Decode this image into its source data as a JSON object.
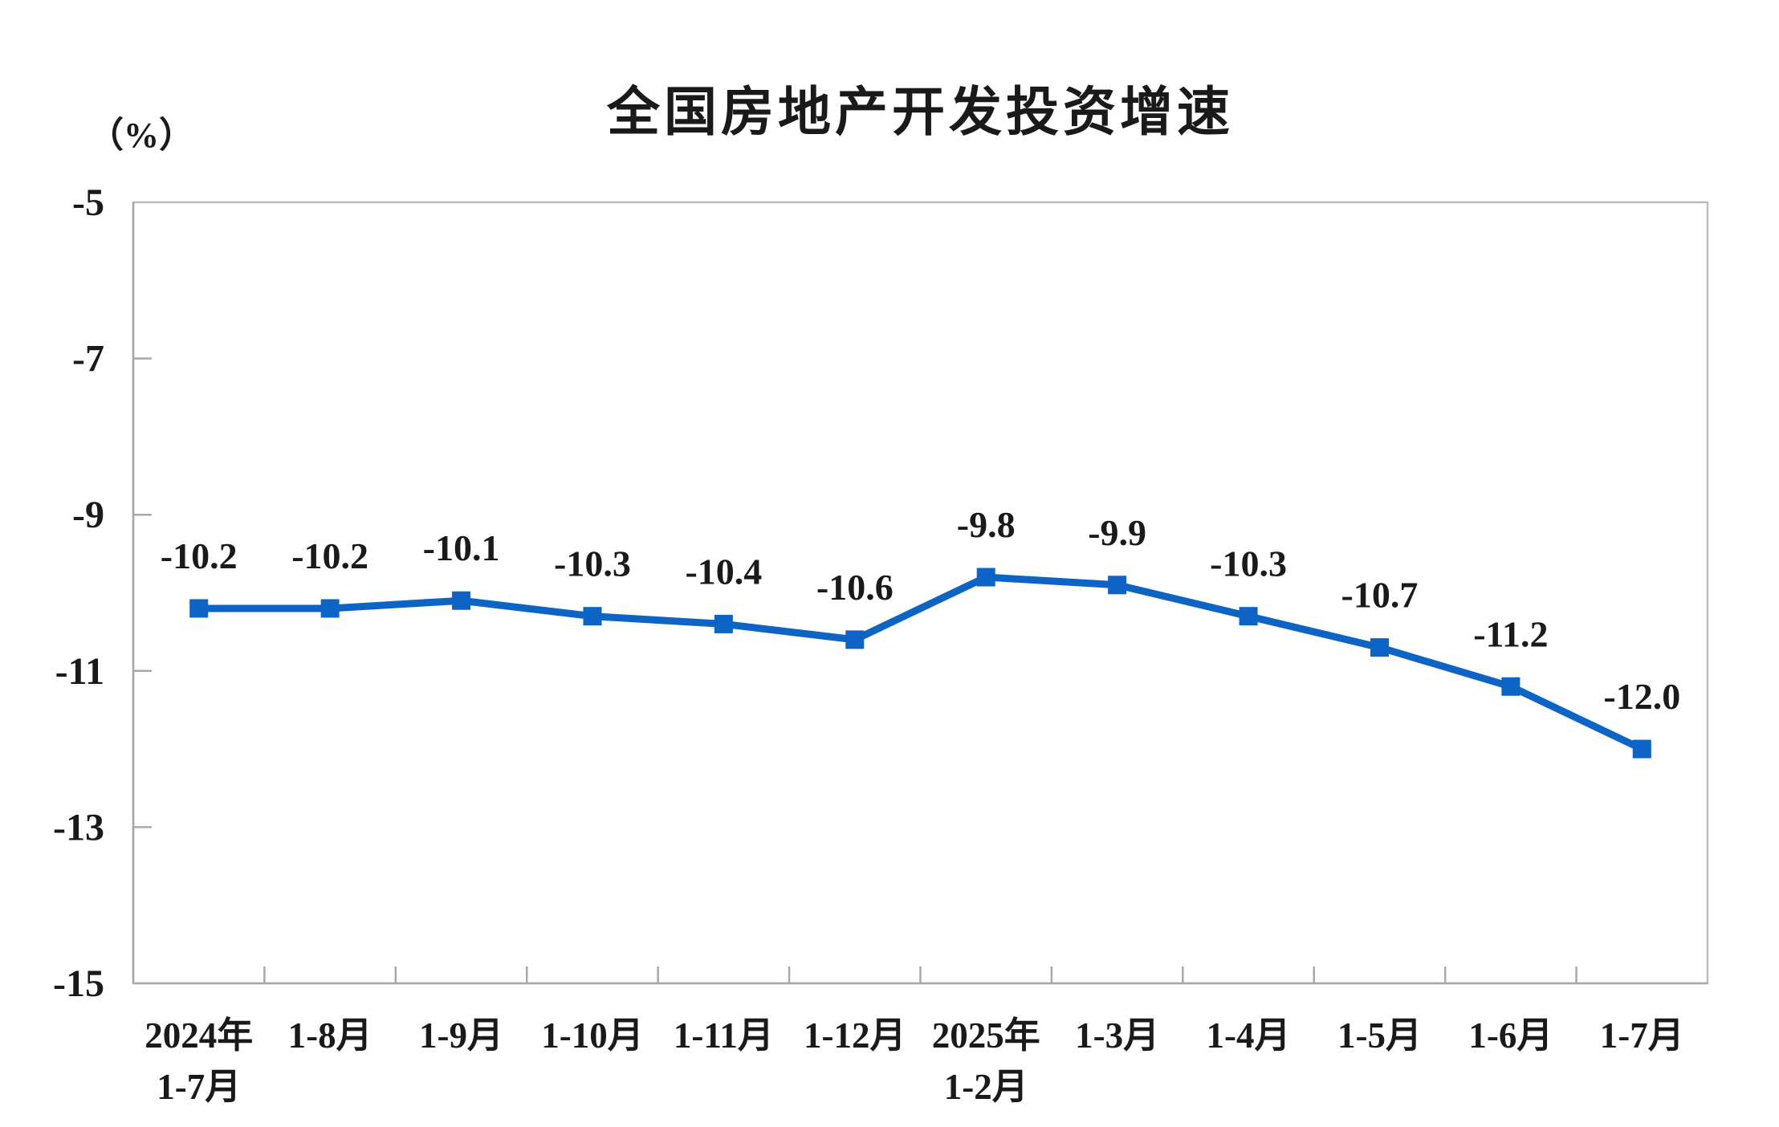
{
  "chart_data": {
    "type": "line",
    "title": "全国房地产开发投资增速",
    "ylabel_unit": "（%）",
    "xlabel": "",
    "grid": false,
    "legend_position": "none",
    "ylim": [
      -15,
      -5
    ],
    "yticks": [
      -5,
      -7,
      -9,
      -11,
      -13,
      -15
    ],
    "ytick_labels": [
      "-5",
      "-7",
      "-9",
      "-11",
      "-13",
      "-15"
    ],
    "categories": [
      [
        "2024年",
        "1-7月"
      ],
      [
        "1-8月"
      ],
      [
        "1-9月"
      ],
      [
        "1-10月"
      ],
      [
        "1-11月"
      ],
      [
        "1-12月"
      ],
      [
        "2025年",
        "1-2月"
      ],
      [
        "1-3月"
      ],
      [
        "1-4月"
      ],
      [
        "1-5月"
      ],
      [
        "1-6月"
      ],
      [
        "1-7月"
      ]
    ],
    "series": [
      {
        "name": "全国房地产开发投资增速",
        "values": [
          -10.2,
          -10.2,
          -10.1,
          -10.3,
          -10.4,
          -10.6,
          -9.8,
          -9.9,
          -10.3,
          -10.7,
          -11.2,
          -12.0
        ],
        "data_labels": [
          "-10.2",
          "-10.2",
          "-10.1",
          "-10.3",
          "-10.4",
          "-10.6",
          "-9.8",
          "-9.9",
          "-10.3",
          "-10.7",
          "-11.2",
          "-12.0"
        ],
        "marker": "square"
      }
    ],
    "colors": {
      "line": "#0E64C5",
      "marker": "#0E64C5",
      "axis": "#A9A9A9",
      "plot_border": "#BDBDBD",
      "text": "#1A1A1A"
    }
  }
}
